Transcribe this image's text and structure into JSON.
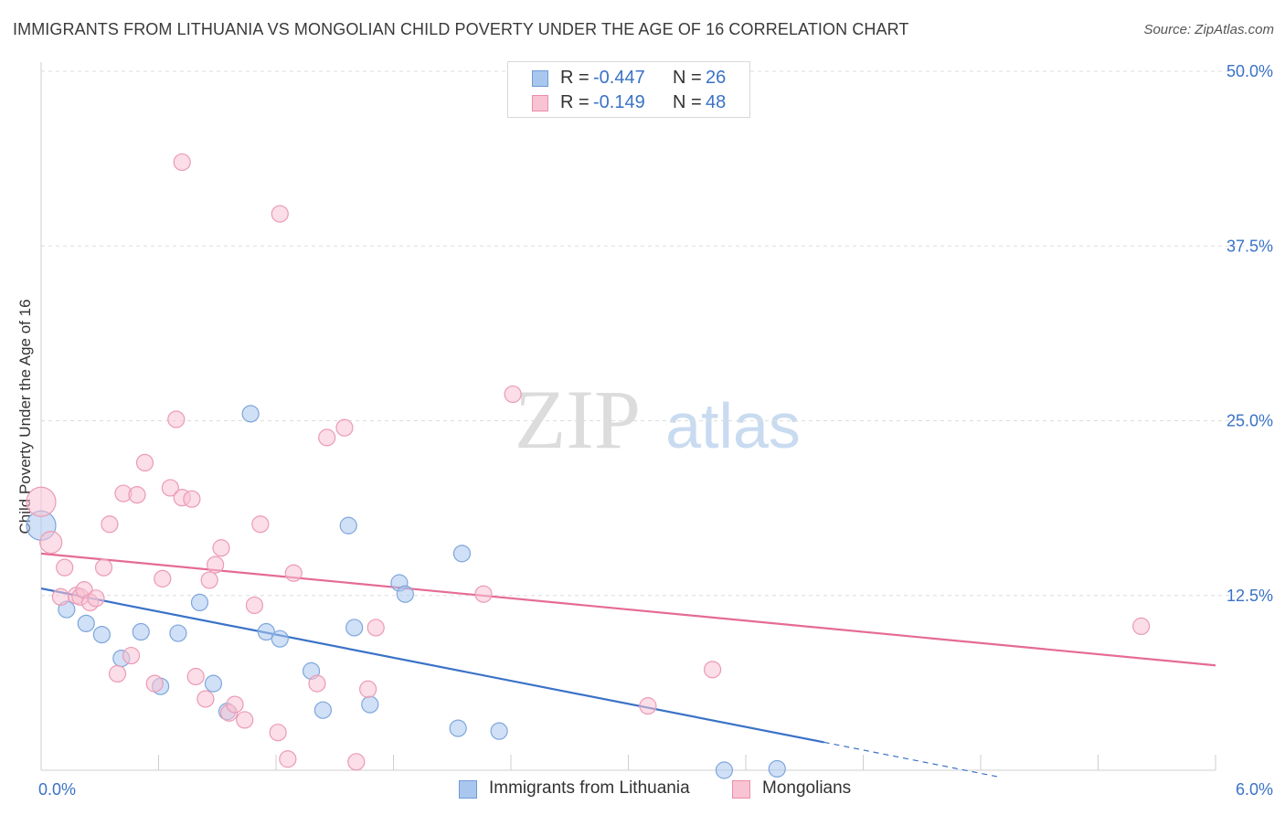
{
  "header": {
    "title": "IMMIGRANTS FROM LITHUANIA VS MONGOLIAN CHILD POVERTY UNDER THE AGE OF 16 CORRELATION CHART",
    "source": "Source: ZipAtlas.com"
  },
  "watermark": {
    "zip": "ZIP",
    "atlas": "atlas"
  },
  "legend": {
    "rows": [
      {
        "r_label": "R =",
        "r_value": "-0.447",
        "n_label": "N =",
        "n_value": "26",
        "color": "#a9c7ee",
        "border": "#6d9bd6"
      },
      {
        "r_label": "R =",
        "r_value": "-0.149",
        "n_label": "N =",
        "n_value": "48",
        "color": "#f8c3d3",
        "border": "#ec8eab"
      }
    ]
  },
  "bottom_legend": {
    "series1": "Immigrants from Lithuania",
    "series2": "Mongolians"
  },
  "chart_data": {
    "type": "scatter",
    "xlabel": "",
    "ylabel": "Child Poverty Under the Age of 16",
    "xlim": [
      0,
      6
    ],
    "ylim": [
      0,
      50
    ],
    "x_tick_labels": [
      "0.0%",
      "6.0%"
    ],
    "y_ticks": [
      12.5,
      25,
      37.5,
      50
    ],
    "y_tick_labels": [
      "12.5%",
      "25.0%",
      "37.5%",
      "50.0%"
    ],
    "grid": true,
    "colors": {
      "blue": "#3a72c7",
      "blue_fill": "#a9c7ee",
      "pink": "#e56b95",
      "pink_fill": "#f8c3d3"
    },
    "series": [
      {
        "name": "Immigrants from Lithuania",
        "color": "#3a72c7",
        "fill": "#a9c7ee",
        "points": [
          [
            0.0,
            17.5,
            16
          ],
          [
            0.13,
            11.5,
            9
          ],
          [
            0.23,
            10.5,
            9
          ],
          [
            0.31,
            9.7,
            9
          ],
          [
            0.41,
            8.0,
            9
          ],
          [
            0.51,
            9.9,
            9
          ],
          [
            0.61,
            6.0,
            9
          ],
          [
            0.7,
            9.8,
            9
          ],
          [
            0.81,
            12.0,
            9
          ],
          [
            0.88,
            6.2,
            9
          ],
          [
            0.95,
            4.2,
            9
          ],
          [
            1.07,
            25.5,
            9
          ],
          [
            1.15,
            9.9,
            9
          ],
          [
            1.22,
            9.4,
            9
          ],
          [
            1.38,
            7.1,
            9
          ],
          [
            1.44,
            4.3,
            9
          ],
          [
            1.57,
            17.5,
            9
          ],
          [
            1.6,
            10.2,
            9
          ],
          [
            1.68,
            4.7,
            9
          ],
          [
            1.83,
            13.4,
            9
          ],
          [
            1.86,
            12.6,
            9
          ],
          [
            2.13,
            3.0,
            9
          ],
          [
            2.15,
            15.5,
            9
          ],
          [
            2.34,
            2.8,
            9
          ],
          [
            3.49,
            0.0,
            9
          ],
          [
            3.76,
            0.1,
            9
          ]
        ]
      },
      {
        "name": "Mongolians",
        "color": "#e56b95",
        "fill": "#f8c3d3",
        "points": [
          [
            0.0,
            19.2,
            16
          ],
          [
            0.05,
            16.3,
            12
          ],
          [
            0.1,
            12.4,
            9
          ],
          [
            0.12,
            14.5,
            9
          ],
          [
            0.18,
            12.5,
            9
          ],
          [
            0.2,
            12.4,
            9
          ],
          [
            0.22,
            12.9,
            9
          ],
          [
            0.25,
            12.0,
            9
          ],
          [
            0.28,
            12.3,
            9
          ],
          [
            0.32,
            14.5,
            9
          ],
          [
            0.35,
            17.6,
            9
          ],
          [
            0.39,
            6.9,
            9
          ],
          [
            0.42,
            19.8,
            9
          ],
          [
            0.46,
            8.2,
            9
          ],
          [
            0.49,
            19.7,
            9
          ],
          [
            0.53,
            22.0,
            9
          ],
          [
            0.58,
            6.2,
            9
          ],
          [
            0.62,
            13.7,
            9
          ],
          [
            0.66,
            20.2,
            9
          ],
          [
            0.69,
            25.1,
            9
          ],
          [
            0.72,
            19.5,
            9
          ],
          [
            0.72,
            43.5,
            9
          ],
          [
            0.77,
            19.4,
            9
          ],
          [
            0.79,
            6.7,
            9
          ],
          [
            0.84,
            5.1,
            9
          ],
          [
            0.86,
            13.6,
            9
          ],
          [
            0.89,
            14.7,
            9
          ],
          [
            0.92,
            15.9,
            9
          ],
          [
            0.96,
            4.1,
            9
          ],
          [
            0.99,
            4.7,
            9
          ],
          [
            1.04,
            3.6,
            9
          ],
          [
            1.09,
            11.8,
            9
          ],
          [
            1.12,
            17.6,
            9
          ],
          [
            1.21,
            2.7,
            9
          ],
          [
            1.22,
            39.8,
            9
          ],
          [
            1.26,
            0.8,
            9
          ],
          [
            1.29,
            14.1,
            9
          ],
          [
            1.41,
            6.2,
            9
          ],
          [
            1.46,
            23.8,
            9
          ],
          [
            1.55,
            24.5,
            9
          ],
          [
            1.61,
            0.6,
            9
          ],
          [
            1.67,
            5.8,
            9
          ],
          [
            1.71,
            10.2,
            9
          ],
          [
            2.26,
            12.6,
            9
          ],
          [
            2.41,
            26.9,
            9
          ],
          [
            3.1,
            4.6,
            9
          ],
          [
            3.43,
            7.2,
            9
          ],
          [
            5.62,
            10.3,
            9
          ]
        ]
      }
    ],
    "trendlines": [
      {
        "series": "Immigrants from Lithuania",
        "x0": 0,
        "y0": 13.0,
        "x1": 4.0,
        "y1": 2.0,
        "dash_to_x": 4.9,
        "dash_to_y": -0.5
      },
      {
        "series": "Mongolians",
        "x0": 0,
        "y0": 15.5,
        "x1": 6.0,
        "y1": 7.5
      }
    ]
  }
}
